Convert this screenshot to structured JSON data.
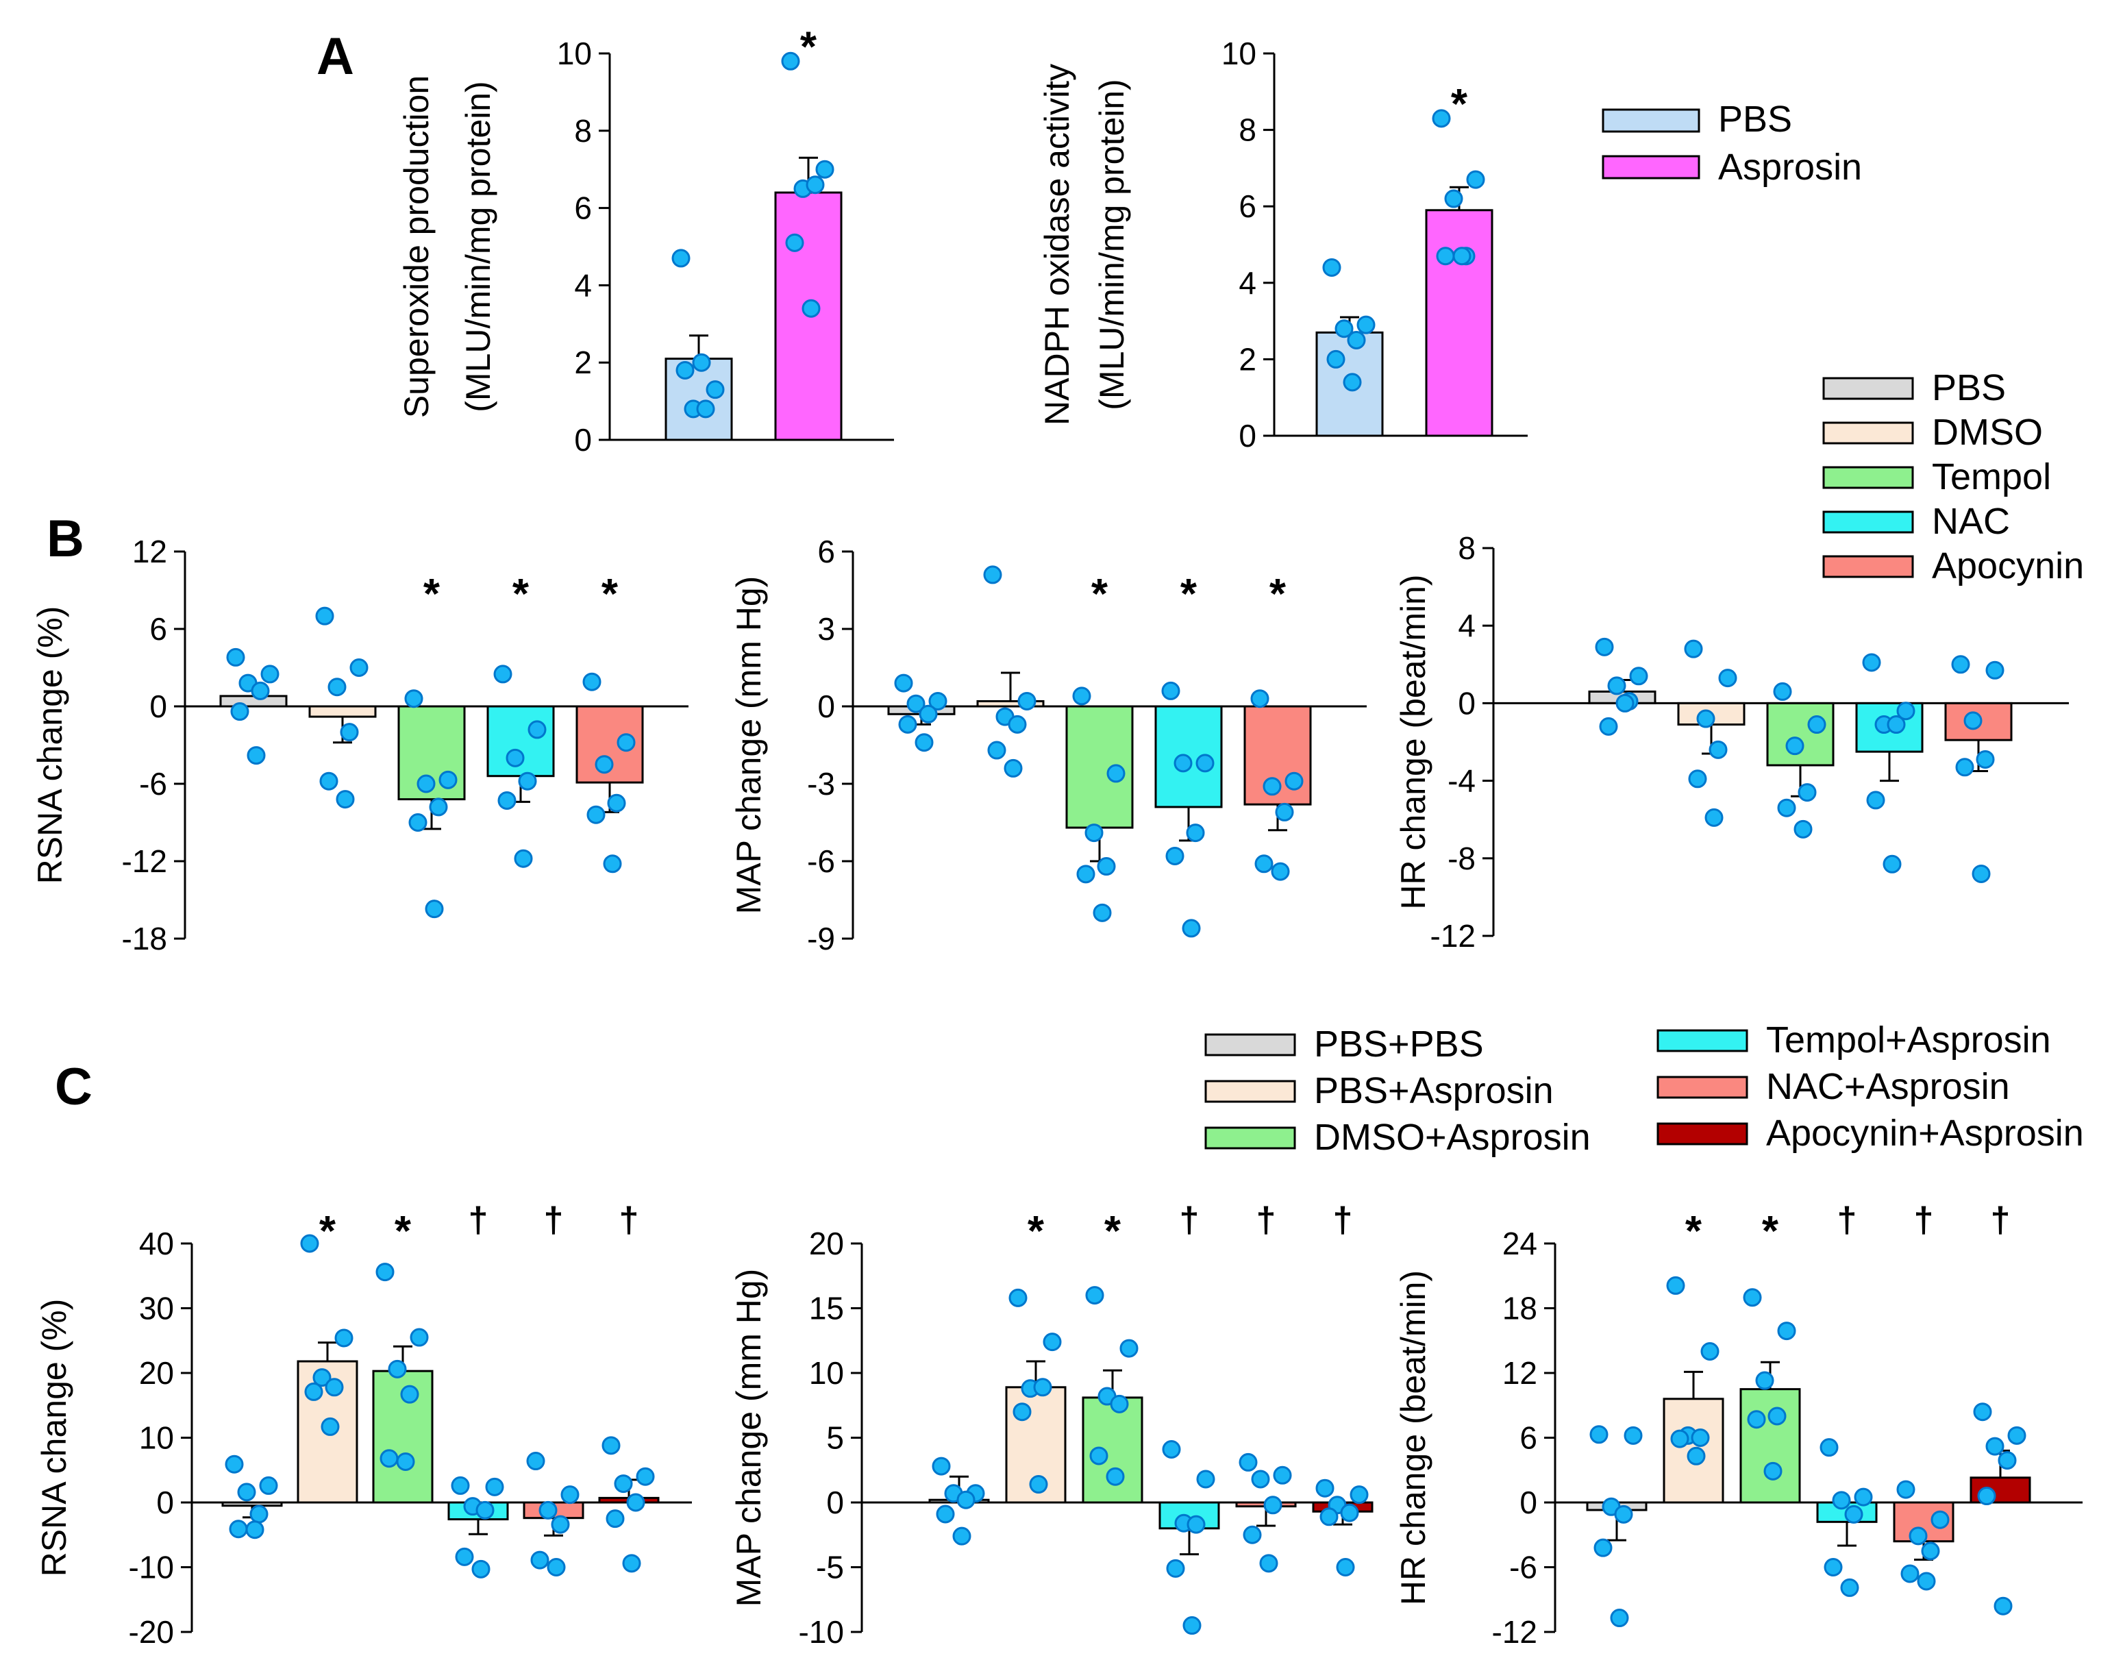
{
  "panel_labels": {
    "a": "A",
    "b": "B",
    "c": "C"
  },
  "colors": {
    "pbs_grey": "#d9d9d9",
    "pbs_blue": "#bfdcf5",
    "asprosin_magenta": "#ff66ff",
    "dmso_cream": "#fbe8d6",
    "tempol_green": "#8ef08e",
    "nac_cyan": "#33f2f2",
    "apocynin_salmon": "#fa8880",
    "apocynin_asprosin_red": "#b30000",
    "dot_fill": "#19b4f5",
    "dot_stroke": "#0077cc"
  },
  "legends": {
    "a": [
      {
        "label": "PBS",
        "color": "#bfdcf5"
      },
      {
        "label": "Asprosin",
        "color": "#ff66ff"
      }
    ],
    "b": [
      {
        "label": "PBS",
        "color": "#d9d9d9"
      },
      {
        "label": "DMSO",
        "color": "#fbe8d6"
      },
      {
        "label": "Tempol",
        "color": "#8ef08e"
      },
      {
        "label": "NAC",
        "color": "#33f2f2"
      },
      {
        "label": "Apocynin",
        "color": "#fa8880"
      }
    ],
    "c": [
      {
        "label": "PBS+PBS",
        "color": "#d9d9d9"
      },
      {
        "label": "PBS+Asprosin",
        "color": "#fbe8d6"
      },
      {
        "label": "DMSO+Asprosin",
        "color": "#8ef08e"
      },
      {
        "label": "Tempol+Asprosin",
        "color": "#33f2f2"
      },
      {
        "label": "NAC+Asprosin",
        "color": "#fa8880"
      },
      {
        "label": "Apocynin+Asprosin",
        "color": "#b30000"
      }
    ]
  },
  "chart_data": [
    {
      "id": "A1",
      "type": "bar",
      "panel": "A",
      "ylabel": [
        "Superoxide production",
        "(MLU/min/mg protein)"
      ],
      "ylim": [
        0,
        10
      ],
      "yticks": [
        0,
        2,
        4,
        6,
        8,
        10
      ],
      "zero_line": false,
      "categories": [
        "PBS",
        "Asprosin"
      ],
      "colors": [
        "#bfdcf5",
        "#ff66ff"
      ],
      "values": [
        2.1,
        6.4
      ],
      "errors": [
        0.6,
        0.9
      ],
      "points": [
        [
          4.7,
          1.3,
          0.8,
          0.8,
          1.8,
          2.0
        ],
        [
          9.8,
          7.0,
          6.5,
          6.6,
          5.1,
          3.4
        ]
      ],
      "marks": [
        "",
        "*"
      ]
    },
    {
      "id": "A2",
      "type": "bar",
      "panel": "A",
      "ylabel": [
        "NADPH oxidase activity",
        "(MLU/min/mg protein)"
      ],
      "ylim": [
        0,
        10
      ],
      "yticks": [
        0,
        2,
        4,
        6,
        8,
        10
      ],
      "zero_line": false,
      "categories": [
        "PBS",
        "Asprosin"
      ],
      "colors": [
        "#bfdcf5",
        "#ff66ff"
      ],
      "values": [
        2.7,
        5.9
      ],
      "errors": [
        0.4,
        0.6
      ],
      "points": [
        [
          4.4,
          2.9,
          2.8,
          2.5,
          2.0,
          1.4
        ],
        [
          8.3,
          6.7,
          6.2,
          4.7,
          4.7,
          4.7
        ]
      ],
      "marks": [
        "",
        "*"
      ]
    },
    {
      "id": "B1",
      "type": "bar",
      "panel": "B",
      "ylabel": [
        "RSNA change (%)"
      ],
      "ylim": [
        -18,
        12
      ],
      "yticks": [
        -18,
        -12,
        -6,
        0,
        6,
        12
      ],
      "zero_line": true,
      "categories": [
        "PBS",
        "DMSO",
        "Tempol",
        "NAC",
        "Apocynin"
      ],
      "colors": [
        "#d9d9d9",
        "#fbe8d6",
        "#8ef08e",
        "#33f2f2",
        "#fa8880"
      ],
      "values": [
        0.8,
        -0.8,
        -7.2,
        -5.4,
        -5.9
      ],
      "errors": [
        1.0,
        2.0,
        2.3,
        2.0,
        2.3
      ],
      "points": [
        [
          3.8,
          2.5,
          1.8,
          1.2,
          -0.4,
          -3.8
        ],
        [
          7.0,
          3.0,
          1.5,
          -2.0,
          -5.8,
          -7.2
        ],
        [
          0.6,
          -5.7,
          -6.0,
          -7.8,
          -9.0,
          -15.7
        ],
        [
          2.5,
          -1.8,
          -4.0,
          -5.8,
          -7.3,
          -11.8
        ],
        [
          1.9,
          -2.8,
          -4.5,
          -7.5,
          -8.4,
          -12.2
        ]
      ],
      "marks": [
        "",
        "",
        "*",
        "*",
        "*"
      ]
    },
    {
      "id": "B2",
      "type": "bar",
      "panel": "B",
      "ylabel": [
        "MAP change (mm Hg)"
      ],
      "ylim": [
        -9,
        6
      ],
      "yticks": [
        -9,
        -6,
        -3,
        0,
        3,
        6
      ],
      "zero_line": true,
      "categories": [
        "PBS",
        "DMSO",
        "Tempol",
        "NAC",
        "Apocynin"
      ],
      "colors": [
        "#d9d9d9",
        "#fbe8d6",
        "#8ef08e",
        "#33f2f2",
        "#fa8880"
      ],
      "values": [
        -0.3,
        0.2,
        -4.7,
        -3.9,
        -3.8
      ],
      "errors": [
        0.4,
        1.1,
        1.3,
        1.3,
        1.0
      ],
      "points": [
        [
          0.9,
          0.2,
          0.1,
          -0.3,
          -0.7,
          -1.4
        ],
        [
          5.1,
          0.2,
          -0.4,
          -0.7,
          -1.7,
          -2.4
        ],
        [
          0.4,
          -2.6,
          -4.9,
          -6.2,
          -6.5,
          -8.0
        ],
        [
          0.6,
          -2.2,
          -2.2,
          -4.9,
          -5.8,
          -8.6
        ],
        [
          0.3,
          -2.9,
          -3.1,
          -4.1,
          -6.1,
          -6.4
        ]
      ],
      "marks": [
        "",
        "",
        "*",
        "*",
        "*"
      ]
    },
    {
      "id": "B3",
      "type": "bar",
      "panel": "B",
      "ylabel": [
        "HR change (beat/min)"
      ],
      "ylim": [
        -12,
        8
      ],
      "yticks": [
        -12,
        -8,
        -4,
        0,
        4,
        8
      ],
      "zero_line": true,
      "categories": [
        "PBS",
        "DMSO",
        "Tempol",
        "NAC",
        "Apocynin"
      ],
      "colors": [
        "#d9d9d9",
        "#fbe8d6",
        "#8ef08e",
        "#33f2f2",
        "#fa8880"
      ],
      "values": [
        0.6,
        -1.1,
        -3.2,
        -2.5,
        -1.9
      ],
      "errors": [
        0.6,
        1.5,
        1.6,
        1.5,
        1.6
      ],
      "points": [
        [
          2.9,
          1.4,
          0.9,
          0.1,
          -1.2,
          0.0
        ],
        [
          2.8,
          1.3,
          -0.8,
          -2.4,
          -3.9,
          -5.9
        ],
        [
          0.6,
          -1.1,
          -2.2,
          -4.6,
          -5.4,
          -6.5
        ],
        [
          2.1,
          -0.4,
          -1.1,
          -1.1,
          -5.0,
          -8.3
        ],
        [
          2.0,
          1.7,
          -0.9,
          -2.9,
          -3.3,
          -8.8
        ]
      ],
      "marks": [
        "",
        "",
        "",
        "",
        ""
      ]
    },
    {
      "id": "C1",
      "type": "bar",
      "panel": "C",
      "ylabel": [
        "RSNA change (%)"
      ],
      "ylim": [
        -20,
        40
      ],
      "yticks": [
        -20,
        -10,
        0,
        10,
        20,
        30,
        40
      ],
      "zero_line": true,
      "categories": [
        "PBS+PBS",
        "PBS+Asprosin",
        "DMSO+Asprosin",
        "Tempol+Asprosin",
        "NAC+Asprosin",
        "Apocynin+Asprosin"
      ],
      "colors": [
        "#d9d9d9",
        "#fbe8d6",
        "#8ef08e",
        "#33f2f2",
        "#fa8880",
        "#b30000"
      ],
      "values": [
        -0.5,
        21.8,
        20.3,
        -2.6,
        -2.4,
        0.7
      ],
      "errors": [
        1.8,
        2.9,
        3.8,
        2.3,
        2.7,
        2.8
      ],
      "points": [
        [
          5.9,
          2.6,
          1.6,
          -1.8,
          -4.1,
          -4.2
        ],
        [
          40.0,
          25.4,
          19.3,
          17.8,
          17.1,
          11.7
        ],
        [
          35.6,
          25.5,
          20.6,
          16.7,
          6.8,
          6.3
        ],
        [
          2.6,
          2.4,
          -0.6,
          -1.2,
          -8.4,
          -10.3
        ],
        [
          6.4,
          1.2,
          -1.2,
          -3.4,
          -8.9,
          -10.0
        ],
        [
          8.8,
          4.0,
          2.9,
          0.0,
          -2.5,
          -9.4
        ]
      ],
      "marks": [
        "",
        "*",
        "*",
        "†",
        "†",
        "†"
      ]
    },
    {
      "id": "C2",
      "type": "bar",
      "panel": "C",
      "ylabel": [
        "MAP change (mm Hg)"
      ],
      "ylim": [
        -10,
        20
      ],
      "yticks": [
        -10,
        -5,
        0,
        5,
        10,
        15,
        20
      ],
      "zero_line": true,
      "categories": [
        "PBS+PBS",
        "PBS+Asprosin",
        "DMSO+Asprosin",
        "Tempol+Asprosin",
        "NAC+Asprosin",
        "Apocynin+Asprosin"
      ],
      "colors": [
        "#d9d9d9",
        "#fbe8d6",
        "#8ef08e",
        "#33f2f2",
        "#fa8880",
        "#b30000"
      ],
      "values": [
        0.2,
        8.9,
        8.1,
        -2.0,
        -0.3,
        -0.7
      ],
      "errors": [
        1.8,
        2.0,
        2.1,
        2.0,
        1.5,
        1.0
      ],
      "points": [
        [
          2.8,
          0.7,
          0.7,
          0.2,
          -0.9,
          -2.6
        ],
        [
          15.8,
          12.4,
          8.8,
          8.9,
          7.0,
          1.4
        ],
        [
          16.0,
          11.9,
          8.2,
          7.6,
          3.6,
          2.0
        ],
        [
          4.1,
          1.8,
          -1.6,
          -1.7,
          -5.1,
          -9.5
        ],
        [
          3.1,
          2.1,
          1.8,
          -0.2,
          -2.5,
          -4.7
        ],
        [
          1.1,
          0.6,
          -0.2,
          -0.8,
          -1.1,
          -5.0
        ]
      ],
      "marks": [
        "",
        "*",
        "*",
        "†",
        "†",
        "†"
      ]
    },
    {
      "id": "C3",
      "type": "bar",
      "panel": "C",
      "ylabel": [
        "HR change (beat/min)"
      ],
      "ylim": [
        -12,
        24
      ],
      "yticks": [
        -12,
        -6,
        0,
        6,
        12,
        18,
        24
      ],
      "zero_line": true,
      "categories": [
        "PBS+PBS",
        "PBS+Asprosin",
        "DMSO+Asprosin",
        "Tempol+Asprosin",
        "NAC+Asprosin",
        "Apocynin+Asprosin"
      ],
      "colors": [
        "#d9d9d9",
        "#fbe8d6",
        "#8ef08e",
        "#33f2f2",
        "#fa8880",
        "#b30000"
      ],
      "values": [
        -0.7,
        9.6,
        10.5,
        -1.8,
        -3.6,
        2.3
      ],
      "errors": [
        2.8,
        2.5,
        2.5,
        2.2,
        1.7,
        2.5
      ],
      "points": [
        [
          6.3,
          6.2,
          -0.4,
          -1.1,
          -4.2,
          -10.7
        ],
        [
          20.1,
          14.0,
          6.2,
          6.0,
          5.9,
          4.3
        ],
        [
          19.0,
          15.9,
          11.3,
          8.0,
          7.7,
          2.9
        ],
        [
          5.1,
          0.5,
          0.2,
          -1.1,
          -6.0,
          -7.9
        ],
        [
          1.2,
          -1.6,
          -3.1,
          -4.5,
          -6.6,
          -7.3
        ],
        [
          8.4,
          6.2,
          5.2,
          3.9,
          0.6,
          -9.6
        ]
      ],
      "marks": [
        "",
        "*",
        "*",
        "†",
        "†",
        "†"
      ]
    }
  ]
}
